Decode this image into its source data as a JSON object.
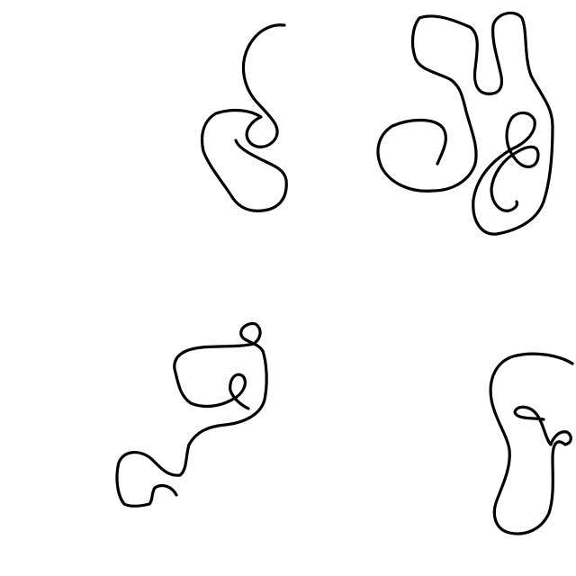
{
  "background_color": "#ffffff",
  "stroke_color": "#000000",
  "drawings": [
    {
      "name": "doodle-top-left"
    },
    {
      "name": "doodle-top-right"
    },
    {
      "name": "doodle-bottom-left"
    },
    {
      "name": "doodle-bottom-right"
    }
  ]
}
